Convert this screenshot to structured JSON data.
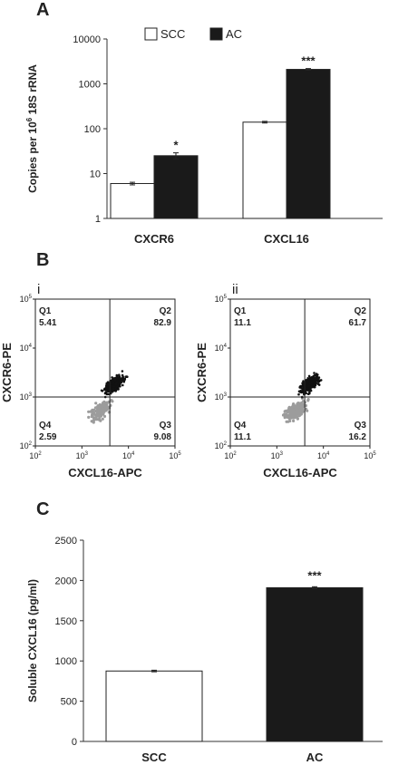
{
  "figure": {
    "panel_a_letter": "A",
    "panel_b_letter": "B",
    "panel_c_letter": "C"
  },
  "colors": {
    "scc": "#ffffff",
    "ac": "#1a1a1a",
    "axis": "#333333"
  },
  "chart_data": [
    {
      "type": "bar",
      "panel": "A",
      "categories": [
        "CXCR6",
        "CXCL16"
      ],
      "series": [
        {
          "name": "SCC",
          "values": [
            6,
            140
          ],
          "errors": [
            0.4,
            6
          ]
        },
        {
          "name": "AC",
          "values": [
            25,
            2100
          ],
          "errors": [
            4,
            90
          ]
        }
      ],
      "significance": [
        "*",
        "***"
      ],
      "ylabel_main": "Copies per 10",
      "ylabel_sup": "6",
      "ylabel_rest": " 18S rRNA",
      "yscale": "log",
      "ylim": [
        1,
        10000
      ],
      "yticks": [
        "1",
        "10",
        "100",
        "1000",
        "10000"
      ],
      "legend": "top-center"
    },
    {
      "type": "scatter",
      "panel": "B",
      "subplots": [
        {
          "label": "i",
          "xlabel": "CXCL16-APC",
          "ylabel": "CXCR6-PE",
          "quadrants": [
            {
              "name": "Q1",
              "value": "5.41"
            },
            {
              "name": "Q2",
              "value": "82.9"
            },
            {
              "name": "Q4",
              "value": "2.59"
            },
            {
              "name": "Q3",
              "value": "9.08"
            }
          ]
        },
        {
          "label": "ii",
          "xlabel": "CXCL16-APC",
          "ylabel": "CXCR6-PE",
          "quadrants": [
            {
              "name": "Q1",
              "value": "11.1"
            },
            {
              "name": "Q2",
              "value": "61.7"
            },
            {
              "name": "Q4",
              "value": "11.1"
            },
            {
              "name": "Q3",
              "value": "16.2"
            }
          ]
        }
      ],
      "xscale": "log",
      "yscale": "log",
      "axis_ticks": [
        {
          "base": "10",
          "exp": "2"
        },
        {
          "base": "10",
          "exp": "3"
        },
        {
          "base": "10",
          "exp": "4"
        },
        {
          "base": "10",
          "exp": "5"
        }
      ]
    },
    {
      "type": "bar",
      "panel": "C",
      "categories": [
        "SCC",
        "AC"
      ],
      "values": [
        875,
        1910
      ],
      "errors": [
        10,
        12
      ],
      "significance": [
        "",
        "***"
      ],
      "ylabel": "Soluble CXCL16 (pg/ml)",
      "ylim": [
        0,
        2500
      ],
      "yticks": [
        "0",
        "500",
        "1000",
        "1500",
        "2000",
        "2500"
      ]
    }
  ]
}
